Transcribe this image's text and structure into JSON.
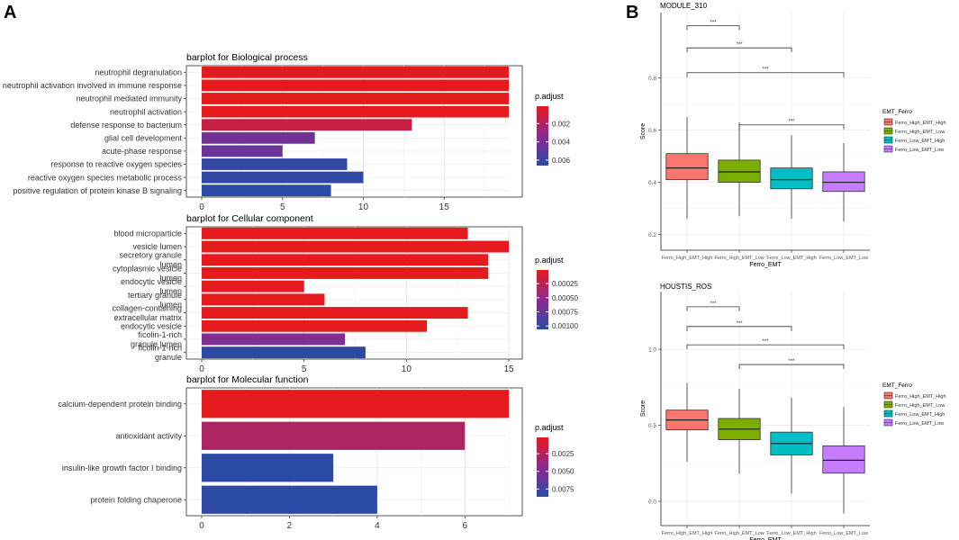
{
  "panel_labels": {
    "a": "A",
    "b": "B"
  },
  "colors": {
    "high": "#e41a1c",
    "low": "#2a4aa6",
    "mid": "#8b2a8f"
  },
  "chart_data": [
    {
      "id": "bp",
      "type": "bar",
      "orientation": "horizontal",
      "title": "barplot for Biological process",
      "categories": [
        "neutrophil degranulation",
        "neutrophil activation involved in immune response",
        "neutrophil mediated immunity",
        "neutrophil activation",
        "defense response to bacterium",
        "glial cell development",
        "acute-phase response",
        "response to reactive oxygen species",
        "reactive oxygen species metabolic process",
        "positive regulation of protein kinase B signaling"
      ],
      "values": [
        19,
        19,
        19,
        19,
        13,
        7,
        5,
        9,
        10,
        8
      ],
      "p_adjust": [
        0.0001,
        0.0001,
        0.0001,
        0.0001,
        0.0012,
        0.0042,
        0.0045,
        0.0063,
        0.0064,
        0.0066
      ],
      "xlim": [
        0,
        19
      ],
      "xticks": [
        0,
        5,
        10,
        15
      ],
      "legend": {
        "title": "p.adjust",
        "min": 0.0001,
        "max": 0.0066,
        "ticks": [
          0.002,
          0.004,
          0.006
        ],
        "tick_labels": [
          "0.002",
          "0.004",
          "0.006"
        ]
      }
    },
    {
      "id": "cc",
      "type": "bar",
      "orientation": "horizontal",
      "title": "barplot for Cellular component",
      "categories": [
        "blood microparticle",
        "vesicle lumen",
        "secretory granule lumen",
        "cytoplasmic vesicle lumen",
        "endocytic vesicle lumen",
        "tertiary granule lumen",
        "collagen-containing extracellular matrix",
        "endocytic vesicle",
        "ficolin-1-rich granule lumen",
        "ficolin-1-rich granule"
      ],
      "values": [
        13,
        15,
        14,
        14,
        5,
        6,
        13,
        11,
        7,
        8
      ],
      "p_adjust": [
        1e-05,
        1e-05,
        1e-05,
        1e-05,
        1e-05,
        1e-05,
        1e-05,
        1e-05,
        0.0006,
        0.00105
      ],
      "xlim": [
        0,
        15
      ],
      "xticks": [
        0,
        5,
        10,
        15
      ],
      "legend": {
        "title": "p.adjust",
        "min": 1e-05,
        "max": 0.00106,
        "ticks": [
          0.00025,
          0.0005,
          0.00075,
          0.001
        ],
        "tick_labels": [
          "0.00025",
          "0.00050",
          "0.00075",
          "0.00100"
        ]
      }
    },
    {
      "id": "mf",
      "type": "bar",
      "orientation": "horizontal",
      "title": "barplot for Molecular function",
      "categories": [
        "calcium-dependent protein binding",
        "antioxidant activity",
        "insulin-like growth factor I binding",
        "protein folding chaperone"
      ],
      "values": [
        7,
        6,
        3,
        4
      ],
      "p_adjust": [
        0.0002,
        0.0028,
        0.0085,
        0.0085
      ],
      "xlim": [
        0,
        7
      ],
      "xticks": [
        0,
        2,
        4,
        6
      ],
      "legend": {
        "title": "p.adjust",
        "min": 0.0002,
        "max": 0.0086,
        "ticks": [
          0.0025,
          0.005,
          0.0075
        ],
        "tick_labels": [
          "0.0025",
          "0.0050",
          "0.0075"
        ]
      }
    },
    {
      "id": "m310",
      "type": "box",
      "title": "MODULE_310",
      "xlabel": "Ferro_EMT",
      "ylabel": "Score",
      "categories": [
        "Ferro_High_EMT_High",
        "Ferro_High_EMT_Low",
        "Ferro_Low_EMT_High",
        "Ferro_Low_EMT_Low"
      ],
      "colors": [
        "#f8766d",
        "#7cae00",
        "#00bfc4",
        "#c77cff"
      ],
      "boxes": [
        {
          "min": 0.26,
          "q1": 0.41,
          "median": 0.455,
          "q3": 0.51,
          "max": 0.65
        },
        {
          "min": 0.27,
          "q1": 0.4,
          "median": 0.44,
          "q3": 0.485,
          "max": 0.63
        },
        {
          "min": 0.26,
          "q1": 0.375,
          "median": 0.41,
          "q3": 0.455,
          "max": 0.58
        },
        {
          "min": 0.25,
          "q1": 0.365,
          "median": 0.4,
          "q3": 0.44,
          "max": 0.55
        }
      ],
      "ylim": [
        0.14,
        1.05
      ],
      "yticks": [
        0.2,
        0.4,
        0.6,
        0.8
      ],
      "ytick_labels": [
        "0.2",
        "0.4",
        "0.6",
        "0.8"
      ],
      "comparisons": [
        {
          "from": 0,
          "to": 1,
          "y": 1.0,
          "label": "***"
        },
        {
          "from": 0,
          "to": 2,
          "y": 0.915,
          "label": "***"
        },
        {
          "from": 0,
          "to": 3,
          "y": 0.82,
          "label": "***"
        },
        {
          "from": 1,
          "to": 3,
          "y": 0.62,
          "label": "***"
        }
      ],
      "legend": {
        "title": "EMT_Ferro",
        "labels": [
          "Ferro_High_EMT_High",
          "Ferro_High_EMT_Low",
          "Ferro_Low_EMT_High",
          "Ferro_Low_EMT_Low"
        ]
      }
    },
    {
      "id": "hros",
      "type": "box",
      "title": "HOUSTIS_ROS",
      "xlabel": "Ferro_EMT",
      "ylabel": "Score",
      "categories": [
        "Ferro_High_EMT_High",
        "Ferro_High_EMT_Low",
        "Ferro_Low_EMT_High",
        "Ferro_Low_EMT_Low"
      ],
      "colors": [
        "#f8766d",
        "#7cae00",
        "#00bfc4",
        "#c77cff"
      ],
      "boxes": [
        {
          "min": 0.26,
          "q1": 0.47,
          "median": 0.535,
          "q3": 0.6,
          "max": 0.78
        },
        {
          "min": 0.18,
          "q1": 0.405,
          "median": 0.475,
          "q3": 0.545,
          "max": 0.74
        },
        {
          "min": 0.05,
          "q1": 0.305,
          "median": 0.38,
          "q3": 0.455,
          "max": 0.68
        },
        {
          "min": -0.08,
          "q1": 0.185,
          "median": 0.27,
          "q3": 0.365,
          "max": 0.62
        }
      ],
      "ylim": [
        -0.16,
        1.38
      ],
      "yticks": [
        0.0,
        0.5,
        1.0
      ],
      "ytick_labels": [
        "0.0",
        "0.5",
        "1.0"
      ],
      "comparisons": [
        {
          "from": 0,
          "to": 1,
          "y": 1.28,
          "label": "***"
        },
        {
          "from": 0,
          "to": 2,
          "y": 1.15,
          "label": "***"
        },
        {
          "from": 0,
          "to": 3,
          "y": 1.03,
          "label": "***"
        },
        {
          "from": 1,
          "to": 3,
          "y": 0.9,
          "label": "***"
        }
      ],
      "legend": {
        "title": "EMT_Ferro",
        "labels": [
          "Ferro_High_EMT_High",
          "Ferro_High_EMT_Low",
          "Ferro_Low_EMT_High",
          "Ferro_Low_EMT_Low"
        ]
      }
    }
  ]
}
